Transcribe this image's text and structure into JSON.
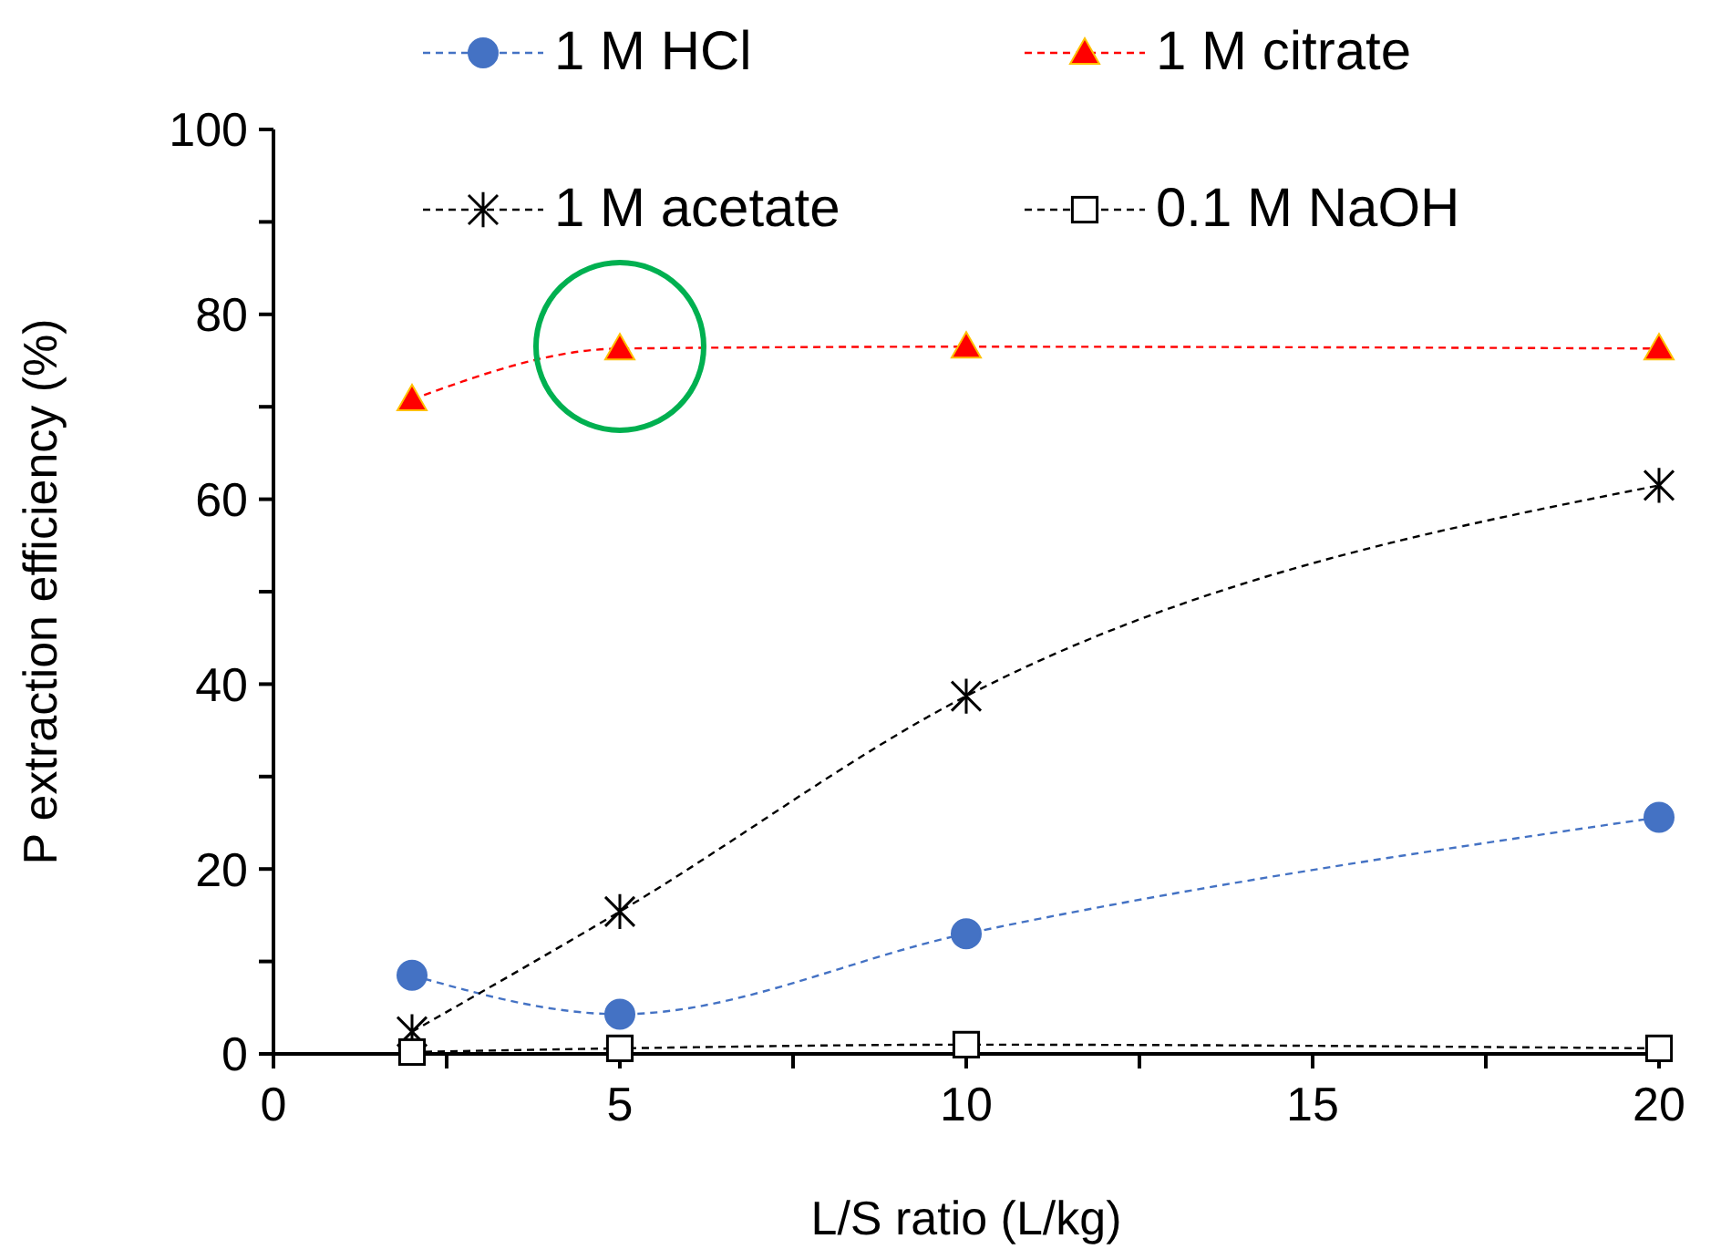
{
  "chart_data": {
    "type": "line",
    "xlabel": "L/S ratio (L/kg)",
    "ylabel": "P extraction efficiency (%)",
    "x": [
      2,
      5,
      10,
      20
    ],
    "series": [
      {
        "name": "1 M HCl",
        "color": "#4472c4",
        "marker": "circle",
        "values": [
          8.5,
          4.3,
          13.0,
          25.6
        ]
      },
      {
        "name": "1 M citrate",
        "color": "#ff0000",
        "marker": "triangle",
        "values": [
          70.8,
          76.3,
          76.5,
          76.3
        ]
      },
      {
        "name": "1 M acetate",
        "color": "#000000",
        "marker": "cross",
        "values": [
          2.4,
          15.4,
          38.7,
          61.5
        ]
      },
      {
        "name": "0.1 M NaOH",
        "color": "#000000",
        "marker": "square",
        "values": [
          0.2,
          0.6,
          1.0,
          0.6
        ]
      }
    ],
    "xlim": [
      0,
      20
    ],
    "xticks": [
      0,
      {
        "value": 2.5,
        "label": null
      },
      5,
      {
        "value": 7.5,
        "label": null
      },
      10,
      {
        "value": 12.5,
        "label": null
      },
      15,
      {
        "value": 17.5,
        "label": null
      },
      20
    ],
    "ylim": [
      0,
      100
    ],
    "yticks": [
      0,
      {
        "value": 10,
        "label": null
      },
      20,
      {
        "value": 30,
        "label": null
      },
      40,
      {
        "value": 50,
        "label": null
      },
      60,
      {
        "value": 70,
        "label": null
      },
      80,
      {
        "value": 90,
        "label": null
      },
      100
    ],
    "grid": false,
    "legend": "top",
    "line_style": "dashed"
  }
}
